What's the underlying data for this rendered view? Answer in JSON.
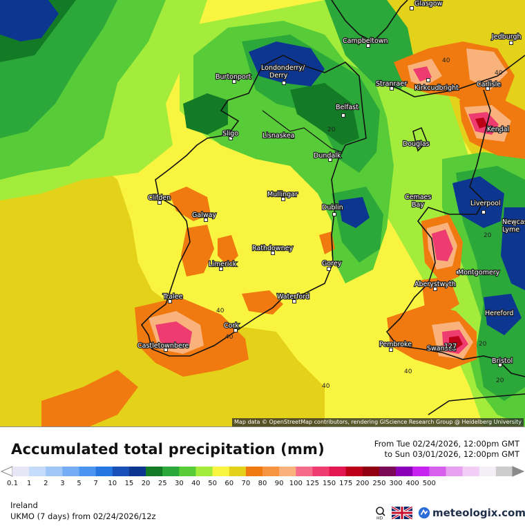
{
  "title": "Accumulated total precipitation (mm)",
  "period": {
    "from": "From Tue 02/24/2026, 12:00pm GMT",
    "to": "to Sun 03/01/2026, 12:00pm GMT"
  },
  "region": "Ireland",
  "model_run": "UKMO (7 days) from 02/24/2026/12z",
  "attribution": "Map data © OpenStreetMap contributors, rendering GIScience Research Group @ Heidelberg University",
  "brand": "meteologix.com",
  "icons": {
    "zoom": "magnifier-hd-icon",
    "language": "uk-flag-icon",
    "brand": "meteologix-logo-icon"
  },
  "legend": {
    "unit": "mm",
    "classes": [
      {
        "label": "0.1",
        "color": "#e6e6f6"
      },
      {
        "label": "1",
        "color": "#c4dcfa"
      },
      {
        "label": "2",
        "color": "#9fc6f7"
      },
      {
        "label": "3",
        "color": "#75adf4"
      },
      {
        "label": "5",
        "color": "#4b94ef"
      },
      {
        "label": "7",
        "color": "#2676e2"
      },
      {
        "label": "10",
        "color": "#1850b8"
      },
      {
        "label": "15",
        "color": "#0d3690"
      },
      {
        "label": "20",
        "color": "#137a26"
      },
      {
        "label": "25",
        "color": "#2ca83a"
      },
      {
        "label": "30",
        "color": "#58cc38"
      },
      {
        "label": "40",
        "color": "#a4ec3c"
      },
      {
        "label": "50",
        "color": "#f8f440"
      },
      {
        "label": "60",
        "color": "#e4d21a"
      },
      {
        "label": "70",
        "color": "#f07a10"
      },
      {
        "label": "80",
        "color": "#f69442"
      },
      {
        "label": "90",
        "color": "#fab27c"
      },
      {
        "label": "100",
        "color": "#f46c8a"
      },
      {
        "label": "125",
        "color": "#ee3c70"
      },
      {
        "label": "150",
        "color": "#e21650"
      },
      {
        "label": "175",
        "color": "#bc0018"
      },
      {
        "label": "200",
        "color": "#900010"
      },
      {
        "label": "250",
        "color": "#7a0a58"
      },
      {
        "label": "300",
        "color": "#8a00b8"
      },
      {
        "label": "400",
        "color": "#c622f0"
      },
      {
        "label": "500",
        "color": "#d660ec"
      },
      {
        "label": "",
        "color": "#e8a0f0"
      },
      {
        "label": "",
        "color": "#f2cef6"
      },
      {
        "label": "",
        "color": "#f4eef6"
      },
      {
        "label": "",
        "color": "#cccccc"
      }
    ]
  },
  "places": [
    {
      "name": "Glasgow"
    },
    {
      "name": "Campbeltown"
    },
    {
      "name": "Jedburgh"
    },
    {
      "name": "Burtonport"
    },
    {
      "name": "Londonderry/ Derry"
    },
    {
      "name": "Stranraer"
    },
    {
      "name": "Kirkcudbright"
    },
    {
      "name": "Carlisle"
    },
    {
      "name": "Belfast"
    },
    {
      "name": "Kendal"
    },
    {
      "name": "Sligo"
    },
    {
      "name": "Lisnaskea"
    },
    {
      "name": "Douglas"
    },
    {
      "name": "Dundalk"
    },
    {
      "name": "Mullingar"
    },
    {
      "name": "Clifden"
    },
    {
      "name": "Cemaes Bay"
    },
    {
      "name": "Liverpool"
    },
    {
      "name": "Dublin"
    },
    {
      "name": "Galway"
    },
    {
      "name": "Newcastle-under-Lyme"
    },
    {
      "name": "Rathdowney"
    },
    {
      "name": "Limerick"
    },
    {
      "name": "Gorey"
    },
    {
      "name": "Montgomery"
    },
    {
      "name": "Aberystwyth"
    },
    {
      "name": "Tralee"
    },
    {
      "name": "Waterford"
    },
    {
      "name": "Hereford"
    },
    {
      "name": "Cork"
    },
    {
      "name": "Castletownbere"
    },
    {
      "name": "Pembroke"
    },
    {
      "name": "Swansea"
    },
    {
      "name": "Bristol"
    }
  ],
  "extremes": [
    {
      "value": "127"
    }
  ],
  "contour_labels": [
    "20",
    "40",
    "40",
    "20",
    "40",
    "40",
    "20",
    "40",
    "20",
    "40"
  ]
}
